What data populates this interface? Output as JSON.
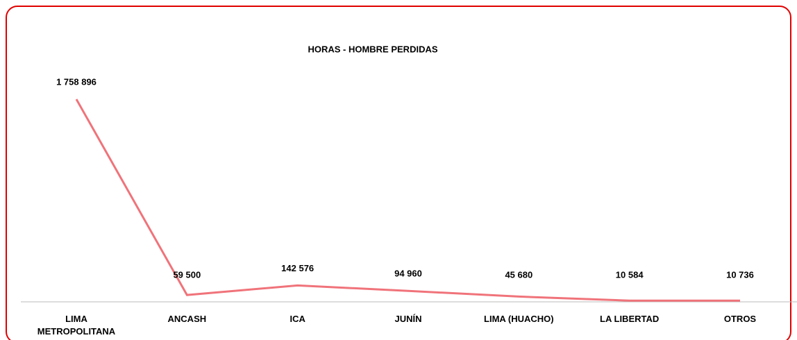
{
  "chart_data": {
    "type": "line",
    "title": "HORAS - HOMBRE PERDIDAS",
    "categories": [
      "LIMA METROPOLITANA",
      "ANCASH",
      "ICA",
      "JUNÍN",
      "LIMA (HUACHO)",
      "LA LIBERTAD",
      "OTROS"
    ],
    "values": [
      1758896,
      59500,
      142576,
      94960,
      45680,
      10584,
      10736
    ],
    "value_labels": [
      "1 758 896",
      "59 500",
      "142 576",
      "94 960",
      "45 680",
      "10 584",
      "10 736"
    ],
    "color": "#f0737a"
  }
}
